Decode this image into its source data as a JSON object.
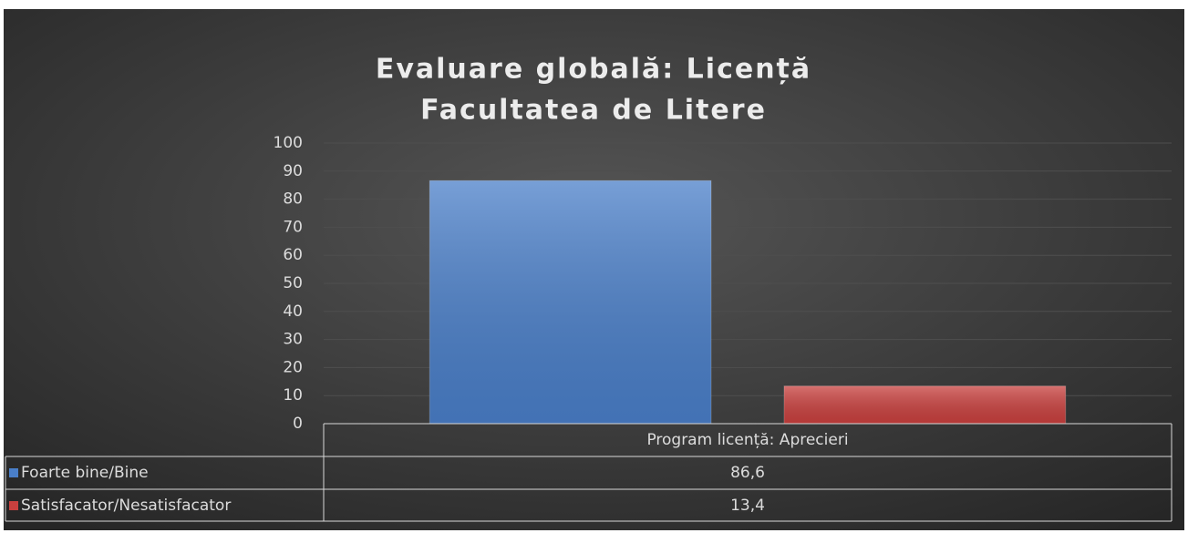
{
  "chart_data": {
    "type": "bar",
    "title": [
      "Evaluare globală: Licență",
      "Facultatea de Litere"
    ],
    "categories": [
      "Program licență: Aprecieri"
    ],
    "series": [
      {
        "name": "Foarte bine/Bine",
        "color": "#4a7fc9",
        "values": [
          86.6
        ],
        "value_labels": [
          "86,6"
        ]
      },
      {
        "name": "Satisfacator/Nesatisfacator",
        "color": "#c9403e",
        "values": [
          13.4
        ],
        "value_labels": [
          "13,4"
        ]
      }
    ],
    "ylim": [
      0,
      100
    ],
    "yticks": [
      0,
      10,
      20,
      30,
      40,
      50,
      60,
      70,
      80,
      90,
      100
    ],
    "grid": true,
    "data_table": true
  }
}
